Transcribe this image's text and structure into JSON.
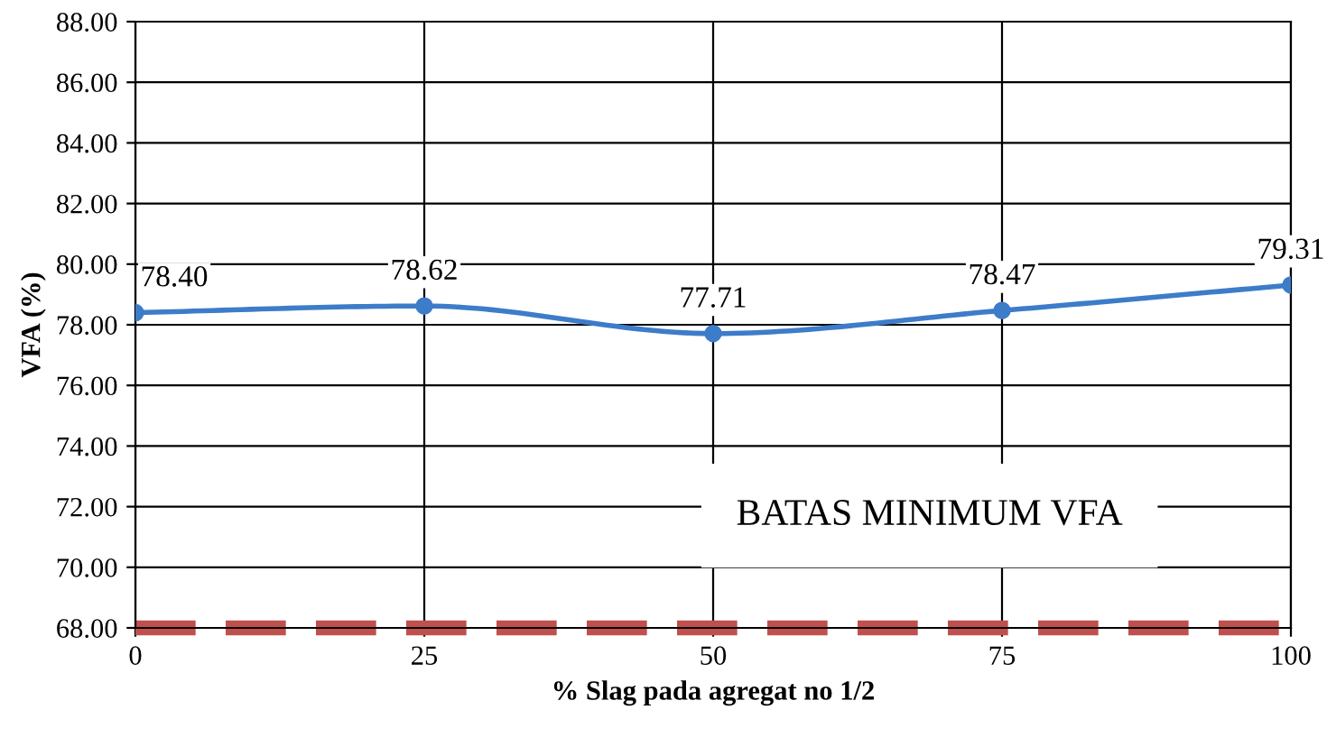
{
  "chart_data": {
    "type": "line",
    "xlabel": "% Slag pada agregat no 1/2",
    "ylabel": "VFA (%)",
    "x": [
      0,
      25,
      50,
      75,
      100
    ],
    "series": [
      {
        "color": "#3d7cc9",
        "values": [
          78.4,
          78.62,
          77.71,
          78.47,
          79.31
        ],
        "value_labels": [
          "78.40",
          "78.62",
          "77.71",
          "78.47",
          "79.31"
        ]
      }
    ],
    "xlim": [
      0,
      100
    ],
    "xticks": [
      0,
      25,
      50,
      75,
      100
    ],
    "ylim": [
      68,
      88
    ],
    "yticks": [
      {
        "value": 68,
        "label": "68.00"
      },
      {
        "value": 70,
        "label": "70.00"
      },
      {
        "value": 72,
        "label": "72.00"
      },
      {
        "value": 74,
        "label": "74.00"
      },
      {
        "value": 76,
        "label": "76.00"
      },
      {
        "value": 78,
        "label": "78.00"
      },
      {
        "value": 80,
        "label": "80.00"
      },
      {
        "value": 82,
        "label": "82.00"
      },
      {
        "value": 84,
        "label": "84.00"
      },
      {
        "value": 86,
        "label": "86.00"
      },
      {
        "value": 88,
        "label": "88.00"
      }
    ],
    "ref_lines": [
      {
        "axis": "y",
        "value": 68,
        "label": "BATAS MINIMUM VFA",
        "color": "#c0504d",
        "line_style": "dashed"
      }
    ],
    "grid": true,
    "marker": "circle",
    "line_style": "solid"
  }
}
